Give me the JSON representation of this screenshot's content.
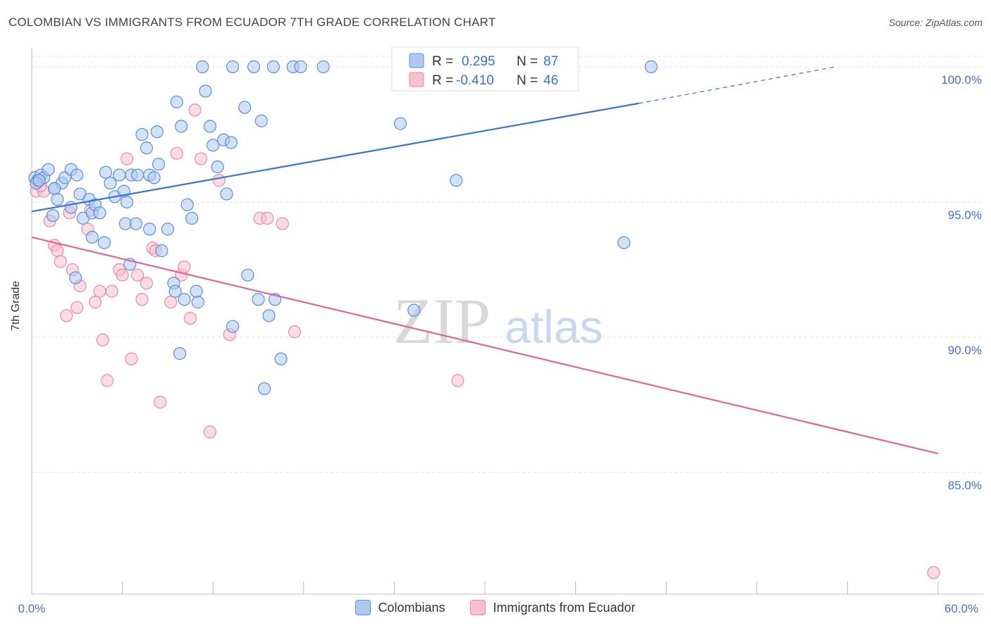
{
  "header": {
    "title": "COLOMBIAN VS IMMIGRANTS FROM ECUADOR 7TH GRADE CORRELATION CHART",
    "source": "Source: ZipAtlas.com"
  },
  "watermark": {
    "zip": "ZIP",
    "atlas": "atlas"
  },
  "legend": {
    "r_label": "R =",
    "n_label": "N =",
    "rows": [
      {
        "r": "0.295",
        "n": "87"
      },
      {
        "r": "-0.410",
        "n": "46"
      }
    ]
  },
  "colors": {
    "blue_fill": "#aec8f0",
    "blue_stroke": "#5b8fd6",
    "blue_line": "#3a72c9",
    "pink_fill": "#f7bfd0",
    "pink_stroke": "#e88aa8",
    "pink_line": "#e06595",
    "tick_text": "#4472c4",
    "grid": "#e3e3e3"
  },
  "chart_data": {
    "type": "scatter",
    "title": "COLOMBIAN VS IMMIGRANTS FROM ECUADOR 7TH GRADE CORRELATION CHART",
    "xlabel": "",
    "ylabel": "7th Grade",
    "xlim": [
      0,
      60
    ],
    "ylim": [
      80.5,
      100.7
    ],
    "x_tick_labels": [
      "0.0%",
      "60.0%"
    ],
    "y_ticks": [
      85,
      90,
      95,
      100
    ],
    "y_tick_labels": [
      "85.0%",
      "90.0%",
      "95.0%",
      "100.0%"
    ],
    "grid": true,
    "legend_position": "bottom",
    "series": [
      {
        "name": "Colombians",
        "r": 0.295,
        "n": 87,
        "trend": {
          "x0": 0,
          "y0": 94.65,
          "x1": 40.2,
          "y1": 98.65,
          "dash_to_x": 53.2,
          "dash_to_y": 100.0
        },
        "points": [
          [
            0.2,
            95.9
          ],
          [
            0.4,
            95.8
          ],
          [
            0.6,
            96.0
          ],
          [
            0.8,
            95.9
          ],
          [
            1.1,
            96.2
          ],
          [
            1.5,
            95.5
          ],
          [
            1.7,
            95.1
          ],
          [
            2.0,
            95.7
          ],
          [
            2.2,
            95.9
          ],
          [
            2.6,
            96.2
          ],
          [
            1.4,
            94.5
          ],
          [
            2.6,
            94.8
          ],
          [
            3.0,
            96.0
          ],
          [
            3.2,
            95.3
          ],
          [
            3.4,
            94.4
          ],
          [
            3.8,
            95.1
          ],
          [
            4.0,
            94.6
          ],
          [
            4.2,
            94.9
          ],
          [
            4.5,
            94.6
          ],
          [
            4.8,
            93.5
          ],
          [
            4.0,
            93.7
          ],
          [
            4.9,
            96.1
          ],
          [
            5.2,
            95.7
          ],
          [
            5.5,
            95.2
          ],
          [
            5.8,
            96.0
          ],
          [
            6.1,
            95.4
          ],
          [
            6.3,
            95.0
          ],
          [
            6.6,
            96.0
          ],
          [
            6.2,
            94.2
          ],
          [
            6.9,
            94.2
          ],
          [
            7.0,
            96.0
          ],
          [
            7.3,
            97.5
          ],
          [
            7.6,
            97.0
          ],
          [
            7.8,
            96.0
          ],
          [
            8.1,
            95.9
          ],
          [
            8.3,
            97.6
          ],
          [
            8.4,
            96.4
          ],
          [
            8.6,
            93.2
          ],
          [
            9.0,
            94.0
          ],
          [
            7.8,
            94.0
          ],
          [
            9.4,
            92.0
          ],
          [
            9.6,
            98.7
          ],
          [
            9.9,
            97.8
          ],
          [
            10.1,
            91.4
          ],
          [
            10.3,
            94.9
          ],
          [
            10.6,
            94.4
          ],
          [
            11.0,
            91.3
          ],
          [
            10.9,
            91.7
          ],
          [
            11.5,
            99.1
          ],
          [
            11.8,
            97.8
          ],
          [
            12.0,
            97.1
          ],
          [
            12.3,
            96.3
          ],
          [
            12.7,
            97.3
          ],
          [
            12.9,
            95.3
          ],
          [
            13.2,
            97.2
          ],
          [
            13.3,
            90.4
          ],
          [
            14.1,
            98.5
          ],
          [
            14.3,
            92.3
          ],
          [
            15.0,
            91.4
          ],
          [
            15.2,
            98.0
          ],
          [
            15.4,
            88.1
          ],
          [
            15.7,
            90.8
          ],
          [
            16.1,
            91.4
          ],
          [
            16.5,
            89.2
          ],
          [
            11.3,
            100.0
          ],
          [
            13.3,
            100.0
          ],
          [
            14.7,
            100.0
          ],
          [
            16.0,
            100.0
          ],
          [
            17.3,
            100.0
          ],
          [
            17.8,
            100.0
          ],
          [
            19.3,
            100.0
          ],
          [
            24.4,
            97.9
          ],
          [
            25.3,
            91.0
          ],
          [
            26.9,
            100.0
          ],
          [
            28.1,
            95.8
          ],
          [
            29.8,
            100.0
          ],
          [
            31.5,
            99.9
          ],
          [
            35.0,
            100.0
          ],
          [
            39.2,
            93.5
          ],
          [
            41.0,
            100.0
          ],
          [
            9.5,
            91.7
          ],
          [
            6.5,
            92.7
          ],
          [
            2.9,
            92.2
          ],
          [
            0.3,
            95.7
          ],
          [
            0.5,
            95.8
          ],
          [
            9.8,
            89.4
          ],
          [
            1.5,
            95.5
          ]
        ]
      },
      {
        "name": "Immigrants from Ecuador",
        "r": -0.41,
        "n": 46,
        "trend": {
          "x0": 0,
          "y0": 93.7,
          "x1": 60,
          "y1": 85.7
        },
        "points": [
          [
            0.3,
            95.4
          ],
          [
            0.5,
            95.8
          ],
          [
            0.8,
            95.4
          ],
          [
            1.2,
            94.3
          ],
          [
            1.5,
            93.4
          ],
          [
            1.7,
            93.2
          ],
          [
            1.9,
            92.8
          ],
          [
            2.3,
            90.8
          ],
          [
            2.5,
            94.6
          ],
          [
            2.7,
            92.5
          ],
          [
            3.0,
            91.1
          ],
          [
            3.2,
            91.9
          ],
          [
            3.7,
            94.0
          ],
          [
            3.9,
            94.7
          ],
          [
            4.2,
            91.3
          ],
          [
            4.5,
            91.7
          ],
          [
            4.7,
            89.9
          ],
          [
            5.0,
            88.4
          ],
          [
            5.3,
            91.7
          ],
          [
            5.8,
            92.5
          ],
          [
            6.0,
            92.3
          ],
          [
            6.3,
            96.6
          ],
          [
            6.6,
            89.2
          ],
          [
            7.0,
            92.3
          ],
          [
            7.3,
            91.4
          ],
          [
            7.6,
            92.0
          ],
          [
            8.0,
            93.3
          ],
          [
            8.2,
            93.2
          ],
          [
            8.5,
            87.6
          ],
          [
            9.2,
            91.3
          ],
          [
            9.6,
            96.8
          ],
          [
            9.9,
            92.3
          ],
          [
            10.1,
            92.6
          ],
          [
            10.5,
            90.7
          ],
          [
            10.8,
            98.4
          ],
          [
            11.2,
            96.6
          ],
          [
            11.8,
            86.5
          ],
          [
            12.4,
            95.8
          ],
          [
            13.1,
            90.1
          ],
          [
            15.1,
            94.4
          ],
          [
            15.6,
            94.4
          ],
          [
            16.6,
            94.2
          ],
          [
            17.4,
            90.2
          ],
          [
            28.2,
            88.4
          ],
          [
            59.7,
            81.3
          ],
          [
            0.6,
            95.6
          ]
        ]
      }
    ]
  }
}
